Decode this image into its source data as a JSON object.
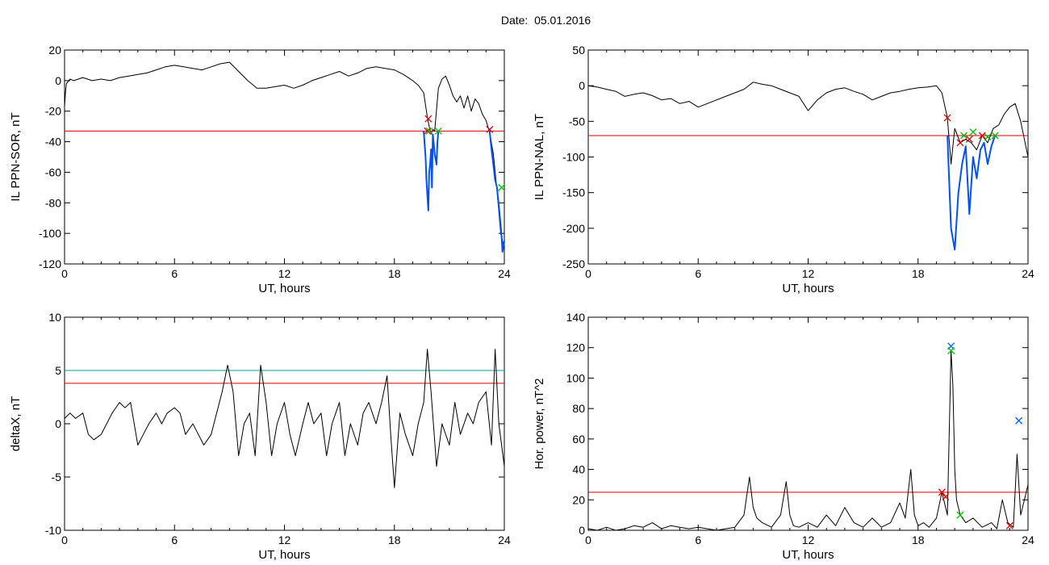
{
  "suptitle": "Date:  05.01.2016",
  "colors": {
    "trace": "#000000",
    "threshold_red": "#e00000",
    "threshold_teal": "#00a0a0",
    "segment_blue": "#0050ff",
    "marker_red": "#e00000",
    "marker_green": "#00c000",
    "marker_blue": "#0060ff"
  },
  "chart_data": [
    {
      "id": "sor",
      "type": "line",
      "xlabel": "UT, hours",
      "ylabel": "IL PPN-SOR, nT",
      "xlim": [
        0,
        24
      ],
      "ylim": [
        -120,
        20
      ],
      "xticks": [
        0,
        6,
        12,
        18,
        24
      ],
      "yticks": [
        20,
        0,
        -20,
        -40,
        -60,
        -80,
        -100,
        -120
      ],
      "threshold_lines": [
        {
          "y": -33,
          "color": "#e00000"
        }
      ],
      "series": [
        {
          "style": "trace",
          "x": [
            0,
            0.05,
            0.1,
            0.3,
            0.5,
            1,
            1.5,
            2,
            2.5,
            3,
            3.5,
            4,
            4.5,
            5,
            5.5,
            6,
            6.5,
            7,
            7.5,
            8,
            8.5,
            9,
            9.5,
            10,
            10.5,
            11,
            11.5,
            12,
            12.5,
            13,
            13.5,
            14,
            14.5,
            15,
            15.5,
            16,
            16.5,
            17,
            17.5,
            18,
            18.5,
            19,
            19.3,
            19.6,
            19.8,
            19.9,
            20.0,
            20.1,
            20.2,
            20.4,
            20.6,
            20.8,
            21.0,
            21.2,
            21.4,
            21.6,
            21.8,
            22.0,
            22.2,
            22.4,
            22.6,
            22.8,
            23.0,
            23.2,
            23.4,
            23.6,
            23.8,
            24
          ],
          "y": [
            -17,
            -8,
            -2,
            1,
            0,
            2,
            0,
            1,
            0,
            2,
            3,
            4,
            5,
            7,
            9,
            10,
            9,
            8,
            7,
            9,
            11,
            12,
            6,
            0,
            -5,
            -5,
            -4,
            -3,
            -5,
            -3,
            0,
            2,
            4,
            6,
            3,
            5,
            8,
            9,
            8,
            7,
            4,
            0,
            -3,
            -8,
            -24,
            -30,
            -35,
            -32,
            -33,
            -5,
            1,
            3,
            -3,
            -10,
            -14,
            -10,
            -18,
            -10,
            -20,
            -12,
            -15,
            -22,
            -26,
            -34,
            -48,
            -72,
            -100,
            -110
          ]
        },
        {
          "style": "segment",
          "x": [
            19.6,
            19.7,
            19.75,
            19.8,
            19.85,
            19.9,
            19.95,
            20.0,
            20.05,
            20.1
          ],
          "y": [
            -33,
            -50,
            -65,
            -75,
            -85,
            -60,
            -55,
            -45,
            -70,
            -35
          ]
        },
        {
          "style": "segment",
          "x": [
            20.1,
            20.2,
            20.3,
            20.35,
            20.4
          ],
          "y": [
            -35,
            -48,
            -55,
            -40,
            -33
          ]
        },
        {
          "style": "segment",
          "x": [
            23.2,
            23.3,
            23.4,
            23.5,
            23.6,
            23.7,
            23.8,
            23.85,
            23.9,
            24
          ],
          "y": [
            -33,
            -45,
            -55,
            -65,
            -70,
            -82,
            -95,
            -102,
            -112,
            -105
          ]
        },
        {
          "style": "markers",
          "marker": "x",
          "color": "#e00000",
          "x": [
            19.8,
            19.85,
            23.2
          ],
          "y": [
            -33,
            -25,
            -32
          ]
        },
        {
          "style": "markers",
          "marker": "x",
          "color": "#00c000",
          "x": [
            19.9,
            20.4
          ],
          "y": [
            -33,
            -33
          ]
        },
        {
          "style": "markers",
          "marker": "x",
          "color": "#00c000",
          "x": [
            23.85
          ],
          "y": [
            -70
          ]
        }
      ]
    },
    {
      "id": "nal",
      "type": "line",
      "xlabel": "UT, hours",
      "ylabel": "IL PPN-NAL, nT",
      "xlim": [
        0,
        24
      ],
      "ylim": [
        -250,
        50
      ],
      "xticks": [
        0,
        6,
        12,
        18,
        24
      ],
      "yticks": [
        50,
        0,
        -50,
        -100,
        -150,
        -200,
        -250
      ],
      "threshold_lines": [
        {
          "y": -70,
          "color": "#e00000"
        }
      ],
      "series": [
        {
          "style": "trace",
          "x": [
            0,
            0.5,
            1,
            1.5,
            2,
            2.5,
            3,
            3.5,
            4,
            4.5,
            5,
            5.5,
            6,
            6.5,
            7,
            7.5,
            8,
            8.5,
            9,
            9.5,
            10,
            10.5,
            11,
            11.5,
            12,
            12.5,
            13,
            13.5,
            14,
            14.5,
            15,
            15.5,
            16,
            16.5,
            17,
            17.5,
            18,
            18.5,
            19,
            19.3,
            19.6,
            19.8,
            20.0,
            20.3,
            20.6,
            20.9,
            21.2,
            21.5,
            21.8,
            22.1,
            22.4,
            22.7,
            23.0,
            23.3,
            23.6,
            24
          ],
          "y": [
            0,
            -2,
            -5,
            -8,
            -15,
            -12,
            -10,
            -14,
            -20,
            -18,
            -25,
            -22,
            -30,
            -25,
            -20,
            -15,
            -10,
            -5,
            5,
            2,
            0,
            -5,
            -10,
            -15,
            -35,
            -20,
            -10,
            -5,
            -3,
            -8,
            -12,
            -20,
            -15,
            -10,
            -8,
            -5,
            -3,
            -2,
            0,
            -10,
            -45,
            -110,
            -60,
            -80,
            -75,
            -80,
            -90,
            -70,
            -80,
            -60,
            -55,
            -40,
            -30,
            -25,
            -50,
            -100
          ]
        },
        {
          "style": "segment",
          "x": [
            19.6,
            19.8,
            20.0,
            20.2,
            20.4,
            20.6,
            20.8,
            21.0,
            21.2,
            21.4,
            21.6,
            21.8,
            22.0,
            22.2
          ],
          "y": [
            -70,
            -200,
            -230,
            -150,
            -110,
            -85,
            -180,
            -100,
            -130,
            -90,
            -80,
            -110,
            -85,
            -70
          ]
        },
        {
          "style": "markers",
          "marker": "x",
          "color": "#e00000",
          "x": [
            19.6,
            20.3,
            20.8,
            21.5
          ],
          "y": [
            -45,
            -80,
            -75,
            -70
          ]
        },
        {
          "style": "markers",
          "marker": "x",
          "color": "#00c000",
          "x": [
            20.5,
            21.0,
            21.8,
            22.2
          ],
          "y": [
            -70,
            -65,
            -72,
            -70
          ]
        }
      ]
    },
    {
      "id": "deltax",
      "type": "line",
      "xlabel": "UT, hours",
      "ylabel": "deltaX, nT",
      "xlim": [
        0,
        24
      ],
      "ylim": [
        -10,
        10
      ],
      "xticks": [
        0,
        6,
        12,
        18,
        24
      ],
      "yticks": [
        10,
        5,
        0,
        -5,
        -10
      ],
      "threshold_lines": [
        {
          "y": 5,
          "color": "#00a0a0"
        },
        {
          "y": 3.8,
          "color": "#e00000"
        }
      ],
      "series": [
        {
          "style": "trace",
          "x": [
            0,
            0.3,
            0.6,
            1,
            1.3,
            1.6,
            2,
            2.3,
            2.6,
            3,
            3.3,
            3.6,
            4,
            4.3,
            4.6,
            5,
            5.3,
            5.6,
            6,
            6.3,
            6.6,
            7,
            7.3,
            7.6,
            8,
            8.3,
            8.6,
            8.9,
            9.2,
            9.5,
            9.8,
            10.1,
            10.4,
            10.7,
            11.0,
            11.3,
            11.6,
            12.0,
            12.3,
            12.6,
            13.0,
            13.3,
            13.6,
            14.0,
            14.3,
            14.6,
            15.0,
            15.3,
            15.6,
            16.0,
            16.3,
            16.6,
            17.0,
            17.3,
            17.6,
            17.8,
            18.0,
            18.3,
            18.6,
            19.0,
            19.3,
            19.6,
            19.8,
            20.0,
            20.3,
            20.6,
            21.0,
            21.3,
            21.6,
            22.0,
            22.3,
            22.6,
            23.0,
            23.3,
            23.5,
            23.7,
            24
          ],
          "y": [
            0.5,
            1,
            0.5,
            1,
            -1,
            -1.5,
            -1,
            0,
            1,
            2,
            1.5,
            2,
            -2,
            -1,
            0,
            1,
            0,
            1,
            1.5,
            1,
            -1,
            0,
            -1,
            -2,
            -1,
            1,
            3,
            5.5,
            3,
            -3,
            0,
            1,
            -3,
            5.5,
            2,
            -3,
            0,
            2,
            -1,
            -3,
            0,
            2,
            0,
            1,
            -3,
            0,
            2,
            -3,
            0,
            -2,
            1,
            2,
            0,
            2,
            4.5,
            -1,
            -6,
            1,
            -1,
            -3,
            0,
            2,
            7,
            3,
            -4,
            0,
            -2,
            2,
            -1,
            1,
            0,
            2,
            3,
            -2,
            7,
            0,
            -4
          ]
        }
      ]
    },
    {
      "id": "hpow",
      "type": "line",
      "xlabel": "UT, hours",
      "ylabel": "Hor. power, nT^2",
      "xlim": [
        0,
        24
      ],
      "ylim": [
        0,
        140
      ],
      "xticks": [
        0,
        6,
        12,
        18,
        24
      ],
      "yticks": [
        140,
        120,
        100,
        80,
        60,
        40,
        20,
        0
      ],
      "threshold_lines": [
        {
          "y": 25,
          "color": "#e00000"
        }
      ],
      "series": [
        {
          "style": "trace",
          "x": [
            0,
            0.5,
            1,
            1.5,
            2,
            2.5,
            3,
            3.5,
            4,
            4.5,
            5,
            5.5,
            6,
            6.5,
            7,
            7.5,
            8,
            8.5,
            8.8,
            9.0,
            9.2,
            9.5,
            10,
            10.5,
            10.8,
            11.0,
            11.2,
            11.5,
            12,
            12.5,
            13,
            13.5,
            14,
            14.5,
            15,
            15.5,
            16,
            16.5,
            17,
            17.3,
            17.6,
            17.8,
            18.0,
            18.3,
            18.6,
            19.0,
            19.3,
            19.6,
            19.8,
            19.9,
            20.0,
            20.1,
            20.3,
            20.6,
            21.0,
            21.5,
            22.0,
            22.3,
            22.6,
            22.9,
            23.2,
            23.4,
            23.6,
            23.8,
            24
          ],
          "y": [
            1,
            0,
            2,
            0,
            1,
            3,
            2,
            5,
            1,
            3,
            2,
            1,
            2,
            1,
            0,
            1,
            2,
            10,
            35,
            15,
            8,
            5,
            2,
            10,
            32,
            10,
            3,
            2,
            5,
            2,
            10,
            3,
            15,
            5,
            2,
            8,
            2,
            5,
            18,
            8,
            40,
            10,
            3,
            5,
            2,
            8,
            25,
            10,
            118,
            95,
            40,
            20,
            10,
            5,
            8,
            2,
            5,
            1,
            20,
            5,
            2,
            50,
            10,
            20,
            30
          ]
        },
        {
          "style": "markers",
          "marker": "x",
          "color": "#e00000",
          "x": [
            19.3,
            19.5,
            23.0
          ],
          "y": [
            25,
            22,
            3
          ]
        },
        {
          "style": "markers",
          "marker": "x",
          "color": "#0060ff",
          "x": [
            19.8,
            23.5
          ],
          "y": [
            121,
            72
          ]
        },
        {
          "style": "markers",
          "marker": "x",
          "color": "#00c000",
          "x": [
            19.8,
            20.3
          ],
          "y": [
            118,
            10
          ]
        }
      ]
    }
  ]
}
